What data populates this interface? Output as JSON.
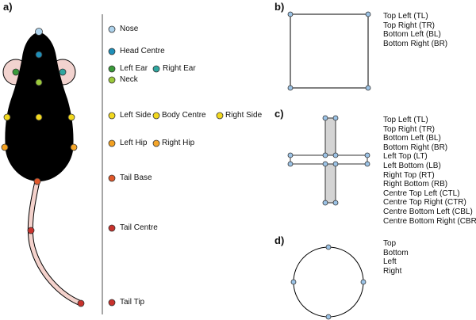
{
  "colors": {
    "body": "#000000",
    "ear_fill": "#f2d3cf",
    "tail": "#f4d2cc",
    "vertex": "#9cc3e6",
    "nose": "#aed3ec",
    "head_centre": "#1f8fb8",
    "left_ear": "#3a9a3a",
    "right_ear": "#2fa7a0",
    "neck": "#9bc93a",
    "side": "#f2d81e",
    "left_hip": "#f2a020",
    "right_hip": "#f5a62a",
    "tail_base": "#e0582a",
    "tail_point": "#c8322c",
    "shape_fill": "#d4d4d4"
  },
  "panels": {
    "a": {
      "label": "a)",
      "keypoints": [
        {
          "id": "nose",
          "label": "Nose",
          "color_key": "nose"
        },
        {
          "id": "head-centre",
          "label": "Head Centre",
          "color_key": "head_centre"
        },
        {
          "id": "left-ear",
          "label": "Left Ear",
          "color_key": "left_ear"
        },
        {
          "id": "right-ear",
          "label": "Right Ear",
          "color_key": "right_ear"
        },
        {
          "id": "neck",
          "label": "Neck",
          "color_key": "neck"
        },
        {
          "id": "left-side",
          "label": "Left Side",
          "color_key": "side"
        },
        {
          "id": "body-centre",
          "label": "Body Centre",
          "color_key": "side"
        },
        {
          "id": "right-side",
          "label": "Right Side",
          "color_key": "side"
        },
        {
          "id": "left-hip",
          "label": "Left Hip",
          "color_key": "left_hip"
        },
        {
          "id": "right-hip",
          "label": "Right Hip",
          "color_key": "right_hip"
        },
        {
          "id": "tail-base",
          "label": "Tail Base",
          "color_key": "tail_base"
        },
        {
          "id": "tail-centre",
          "label": "Tail Centre",
          "color_key": "tail_point"
        },
        {
          "id": "tail-tip",
          "label": "Tail Tip",
          "color_key": "tail_point"
        }
      ]
    },
    "b": {
      "label": "b)",
      "points": [
        "Top Left (TL)",
        "Top Right (TR)",
        "Bottom Left (BL)",
        "Bottom Right (BR)"
      ]
    },
    "c": {
      "label": "c)",
      "points": [
        "Top Left (TL)",
        "Top Right (TR)",
        "Bottom Left (BL)",
        "Bottom Right (BR)",
        "Left Top (LT)",
        "Left Bottom (LB)",
        "Right Top (RT)",
        "Right Bottom (RB)",
        "Centre Top Left (CTL)",
        "Centre Top Right (CTR)",
        "Centre Bottom Left (CBL)",
        "Centre Bottom Right (CBR)"
      ]
    },
    "d": {
      "label": "d)",
      "points": [
        "Top",
        "Bottom",
        "Left",
        "Right"
      ]
    }
  }
}
